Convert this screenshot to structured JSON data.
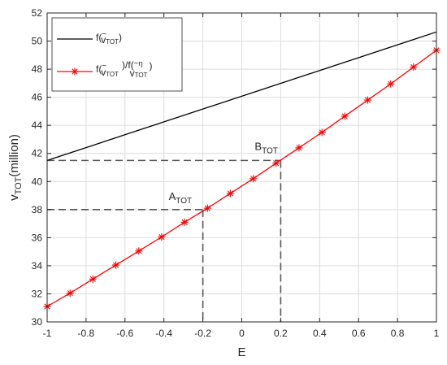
{
  "colors": {
    "series_black": "#000000",
    "series_red": "#ff0000",
    "grid": "#dcdcdc",
    "axis": "#262626",
    "dashed": "#555555"
  },
  "chart_data": {
    "type": "line",
    "xlabel": "E",
    "ylabel": {
      "main": "v",
      "sub": "TOT",
      "suffix": "(million)"
    },
    "xlim": [
      -1,
      1
    ],
    "ylim": [
      30,
      52
    ],
    "grid": true,
    "legend_position": "top-left",
    "x_ticks": [
      "-1",
      "-0.8",
      "-0.6",
      "-0.4",
      "-0.2",
      "0",
      "0.2",
      "0.4",
      "0.6",
      "0.8",
      "1"
    ],
    "y_ticks": [
      "30",
      "32",
      "34",
      "36",
      "38",
      "40",
      "42",
      "44",
      "46",
      "48",
      "50",
      "52"
    ],
    "series": [
      {
        "name": {
          "pre": "f(",
          "tilde": "~",
          "var": "v",
          "sub": "TOT",
          "post": ")"
        },
        "color": "#000000",
        "marker": "none",
        "x": [
          -1,
          1
        ],
        "y": [
          41.5,
          50.65
        ]
      },
      {
        "name": {
          "pre": "f(",
          "tilde": "~",
          "var": "v",
          "sub": "TOT",
          "mid": ")/f(",
          "tilde2": "~",
          "sub2top": "η",
          "var2": "v",
          "sub2": "TOT",
          "post": ")"
        },
        "color": "#ff0000",
        "marker": "asterisk",
        "x": [
          -1,
          -0.882,
          -0.765,
          -0.647,
          -0.529,
          -0.412,
          -0.294,
          -0.176,
          -0.059,
          0.059,
          0.176,
          0.294,
          0.412,
          0.529,
          0.647,
          0.765,
          0.882,
          1
        ],
        "y": [
          31.1,
          32.05,
          33.05,
          34.05,
          35.05,
          36.05,
          37.1,
          38.1,
          39.15,
          40.2,
          41.3,
          42.4,
          43.5,
          44.65,
          45.8,
          46.95,
          48.15,
          49.35
        ]
      }
    ],
    "annotations": [
      {
        "label_main": "A",
        "label_sub": "TOT",
        "x": -0.2,
        "y": 38
      },
      {
        "label_main": "B",
        "label_sub": "TOT",
        "x": 0.2,
        "y": 41.5
      }
    ]
  }
}
